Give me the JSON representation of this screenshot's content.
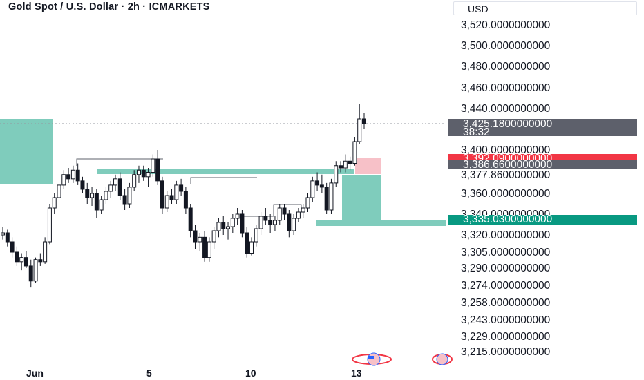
{
  "header": {
    "title": "Gold Spot / U.S. Dollar · 2h · ICMARKETS",
    "currency": "USD"
  },
  "colors": {
    "up": "#131722",
    "down": "#131722",
    "zone_teal": "#7fccbc",
    "zone_pink": "#f7c1c8",
    "tag_dark": "#5d606b",
    "tag_red": "#f23645",
    "tag_green": "#089981"
  },
  "chart_data": {
    "type": "candlestick",
    "ylim": [
      3208,
      3538
    ],
    "x_dates": [
      "Jun",
      "5",
      "10",
      "13"
    ],
    "y_ticks": [
      "3,520.0000000000",
      "3,500.0000000000",
      "3,480.0000000000",
      "3,460.0000000000",
      "3,440.0000000000",
      "3,400.0000000000",
      "3,377.8600000000",
      "3,360.0000000000",
      "3,340.0000000000",
      "3,320.0000000000",
      "3,305.0000000000",
      "3,290.0000000000",
      "3,274.0000000000",
      "3,258.0000000000",
      "3,243.0000000000",
      "3,229.0000000000",
      "3,215.0000000000"
    ],
    "y_tick_values": [
      3520,
      3500,
      3480,
      3460,
      3440,
      3400,
      3377.86,
      3360,
      3340,
      3320,
      3305,
      3290,
      3274,
      3258,
      3243,
      3229,
      3215
    ],
    "price_tags": [
      {
        "label": "3,425.1800000000",
        "sub": "38:32",
        "value": 3425.18,
        "color": "dark"
      },
      {
        "label": "3,392.0900000000",
        "value": 3392.09,
        "color": "red"
      },
      {
        "label": "3,386.6600000000",
        "value": 3386.66,
        "color": "dark"
      },
      {
        "label": "3,335.0300000000",
        "value": 3335.03,
        "color": "green"
      }
    ],
    "candles": [
      [
        3320,
        3328,
        3316,
        3322
      ],
      [
        3322,
        3325,
        3310,
        3314
      ],
      [
        3314,
        3318,
        3300,
        3305
      ],
      [
        3305,
        3310,
        3292,
        3296
      ],
      [
        3296,
        3304,
        3288,
        3300
      ],
      [
        3300,
        3306,
        3290,
        3292
      ],
      [
        3292,
        3298,
        3272,
        3278
      ],
      [
        3278,
        3300,
        3276,
        3298
      ],
      [
        3298,
        3304,
        3292,
        3296
      ],
      [
        3296,
        3318,
        3294,
        3314
      ],
      [
        3314,
        3350,
        3312,
        3346
      ],
      [
        3346,
        3360,
        3340,
        3356
      ],
      [
        3356,
        3372,
        3352,
        3368
      ],
      [
        3368,
        3382,
        3364,
        3378
      ],
      [
        3378,
        3384,
        3370,
        3374
      ],
      [
        3374,
        3386,
        3370,
        3382
      ],
      [
        3382,
        3388,
        3368,
        3372
      ],
      [
        3372,
        3376,
        3360,
        3364
      ],
      [
        3364,
        3370,
        3350,
        3356
      ],
      [
        3356,
        3366,
        3348,
        3360
      ],
      [
        3360,
        3364,
        3336,
        3344
      ],
      [
        3344,
        3358,
        3340,
        3354
      ],
      [
        3354,
        3366,
        3350,
        3362
      ],
      [
        3362,
        3372,
        3356,
        3368
      ],
      [
        3368,
        3378,
        3362,
        3374
      ],
      [
        3374,
        3380,
        3354,
        3358
      ],
      [
        3358,
        3364,
        3344,
        3350
      ],
      [
        3350,
        3370,
        3346,
        3366
      ],
      [
        3366,
        3382,
        3362,
        3378
      ],
      [
        3378,
        3386,
        3370,
        3382
      ],
      [
        3382,
        3386,
        3372,
        3376
      ],
      [
        3376,
        3384,
        3366,
        3380
      ],
      [
        3380,
        3396,
        3376,
        3392
      ],
      [
        3392,
        3400,
        3368,
        3372
      ],
      [
        3372,
        3376,
        3340,
        3346
      ],
      [
        3346,
        3362,
        3342,
        3358
      ],
      [
        3358,
        3364,
        3350,
        3354
      ],
      [
        3354,
        3372,
        3350,
        3368
      ],
      [
        3368,
        3374,
        3358,
        3362
      ],
      [
        3362,
        3366,
        3340,
        3346
      ],
      [
        3346,
        3350,
        3318,
        3324
      ],
      [
        3324,
        3330,
        3308,
        3314
      ],
      [
        3314,
        3322,
        3306,
        3318
      ],
      [
        3318,
        3324,
        3296,
        3300
      ],
      [
        3300,
        3318,
        3296,
        3314
      ],
      [
        3314,
        3328,
        3308,
        3324
      ],
      [
        3324,
        3336,
        3318,
        3332
      ],
      [
        3332,
        3338,
        3320,
        3326
      ],
      [
        3326,
        3332,
        3316,
        3328
      ],
      [
        3328,
        3340,
        3322,
        3336
      ],
      [
        3336,
        3346,
        3330,
        3340
      ],
      [
        3340,
        3344,
        3318,
        3322
      ],
      [
        3322,
        3328,
        3300,
        3304
      ],
      [
        3304,
        3318,
        3302,
        3314
      ],
      [
        3314,
        3330,
        3310,
        3326
      ],
      [
        3326,
        3342,
        3320,
        3338
      ],
      [
        3338,
        3346,
        3330,
        3334
      ],
      [
        3334,
        3340,
        3322,
        3330
      ],
      [
        3330,
        3338,
        3324,
        3334
      ],
      [
        3334,
        3350,
        3330,
        3346
      ],
      [
        3346,
        3350,
        3334,
        3340
      ],
      [
        3340,
        3344,
        3318,
        3324
      ],
      [
        3324,
        3340,
        3320,
        3336
      ],
      [
        3336,
        3346,
        3332,
        3342
      ],
      [
        3342,
        3350,
        3336,
        3346
      ],
      [
        3346,
        3360,
        3342,
        3356
      ],
      [
        3356,
        3376,
        3352,
        3372
      ],
      [
        3372,
        3380,
        3362,
        3368
      ],
      [
        3368,
        3378,
        3360,
        3366
      ],
      [
        3366,
        3370,
        3340,
        3344
      ],
      [
        3344,
        3374,
        3340,
        3370
      ],
      [
        3370,
        3390,
        3366,
        3386
      ],
      [
        3386,
        3390,
        3380,
        3384
      ],
      [
        3384,
        3396,
        3380,
        3390
      ],
      [
        3390,
        3394,
        3382,
        3388
      ],
      [
        3388,
        3412,
        3386,
        3408
      ],
      [
        3408,
        3444,
        3406,
        3430
      ],
      [
        3430,
        3436,
        3420,
        3425
      ]
    ]
  }
}
